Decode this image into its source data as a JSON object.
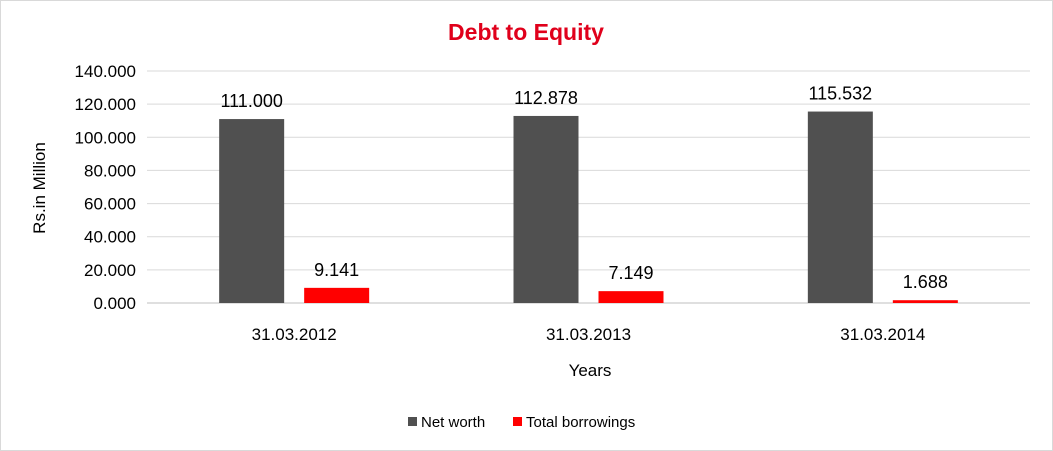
{
  "chart_data": {
    "type": "bar",
    "title": "Debt to Equity",
    "xlabel": "Years",
    "ylabel": "Rs.in Million",
    "categories": [
      "31.03.2012",
      "31.03.2013",
      "31.03.2014"
    ],
    "series": [
      {
        "name": "Net worth",
        "values": [
          111.0,
          112.878,
          115.532
        ],
        "labels": [
          "111.000",
          "112.878",
          "115.532"
        ],
        "color": "#505050"
      },
      {
        "name": "Total borrowings",
        "values": [
          9.141,
          7.149,
          1.688
        ],
        "labels": [
          "9.141",
          "7.149",
          "1.688"
        ],
        "color": "#ff0000"
      }
    ],
    "ylim": [
      0,
      140
    ],
    "yticks": [
      "0.000",
      "20.000",
      "40.000",
      "60.000",
      "80.000",
      "100.000",
      "120.000",
      "140.000"
    ],
    "grid": true,
    "legend_position": "bottom",
    "title_color": "#e0001b"
  }
}
